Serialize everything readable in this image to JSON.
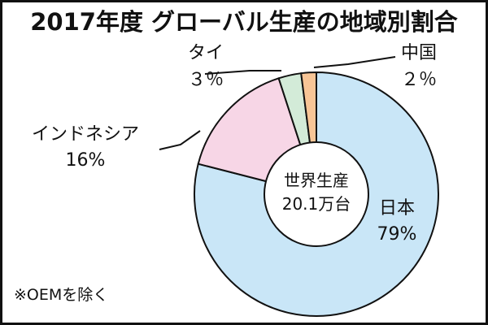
{
  "chart_data": {
    "type": "pie",
    "title": "2017年度 グローバル生産の地域別割合",
    "center_label_lines": [
      "世界生産",
      "20.1万台"
    ],
    "note": "※OEMを除く",
    "categories": [
      "日本",
      "インドネシア",
      "タイ",
      "中国"
    ],
    "values": [
      79,
      16,
      3,
      2
    ],
    "value_labels": [
      "79%",
      "16%",
      "３％",
      "２％"
    ],
    "colors": [
      "#c9e6f7",
      "#f7d6e6",
      "#d3ebd8",
      "#f8c596"
    ],
    "border_color": "#111111",
    "donut": true
  }
}
